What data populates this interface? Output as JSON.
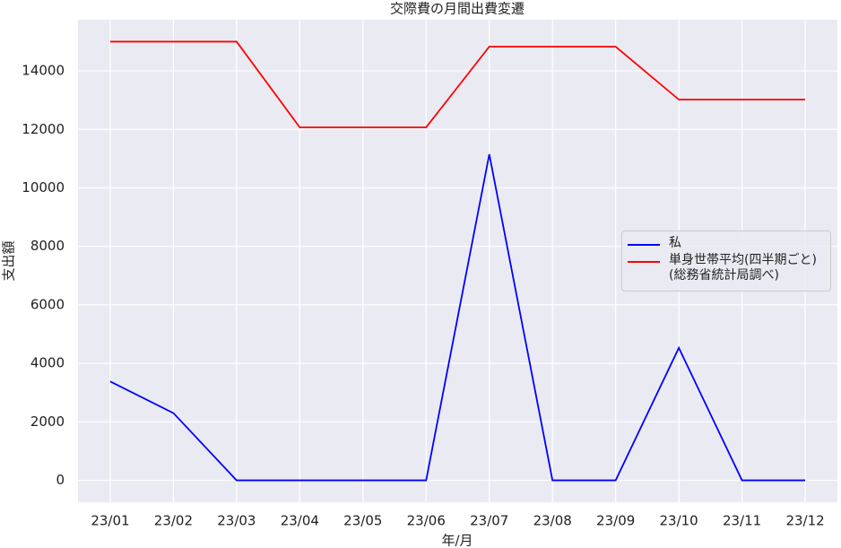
{
  "chart_data": {
    "type": "line",
    "title": "交際費の月間出費変遷",
    "x_label": "年/月",
    "y_label": "支出額",
    "categories": [
      "23/01",
      "23/02",
      "23/03",
      "23/04",
      "23/05",
      "23/06",
      "23/07",
      "23/08",
      "23/09",
      "23/10",
      "23/11",
      "23/12"
    ],
    "series": [
      {
        "name": "私",
        "color": "#0000ff",
        "values": [
          3380,
          2300,
          0,
          0,
          0,
          0,
          11150,
          0,
          0,
          4530,
          0,
          0
        ]
      },
      {
        "name": "単身世帯平均(四半期ごと)\n(総務省統計局調べ)",
        "color": "#ff0000",
        "values": [
          15000,
          15000,
          15000,
          12070,
          12070,
          12070,
          14830,
          14830,
          14830,
          13020,
          13020,
          13020
        ]
      }
    ],
    "ylim": [
      -750,
      15750
    ],
    "yticks": [
      0,
      2000,
      4000,
      6000,
      8000,
      10000,
      12000,
      14000
    ],
    "grid": true,
    "legend": "right"
  }
}
